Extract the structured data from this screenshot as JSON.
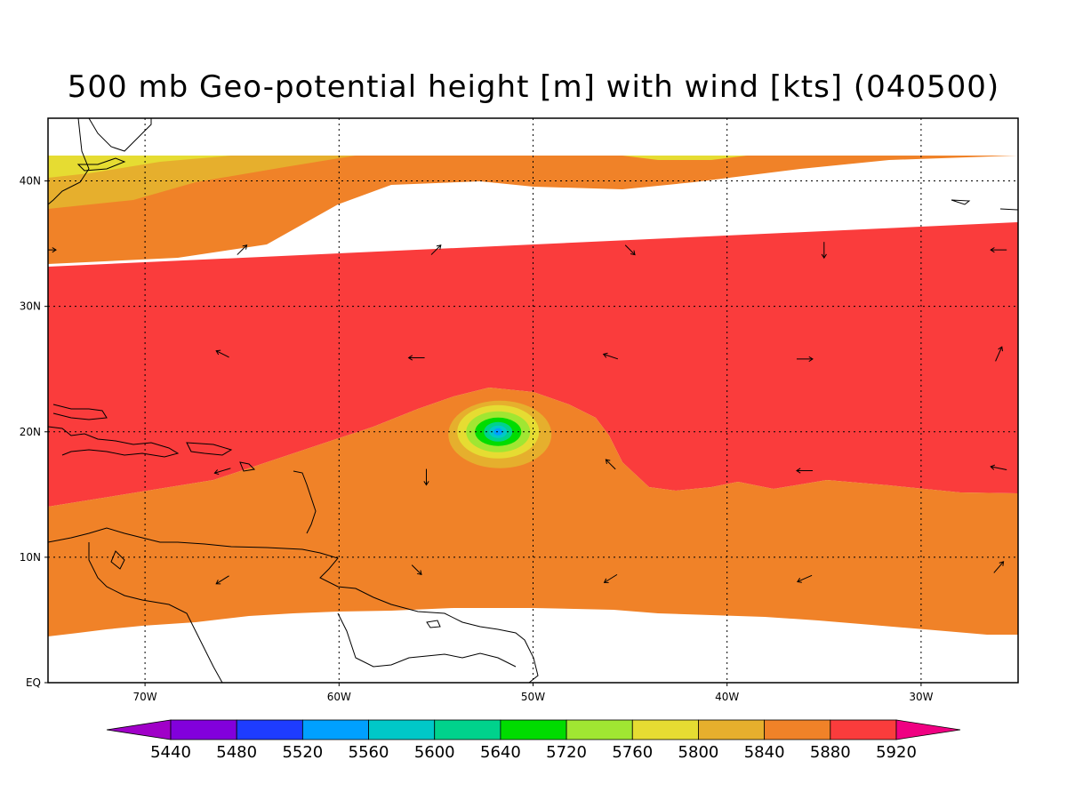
{
  "title": "500 mb Geo-potential height [m] with wind [kts] (040500)",
  "map": {
    "lon_range": [
      -75,
      -25
    ],
    "lat_range": [
      0,
      45
    ],
    "data_lat_top": 42,
    "lat_ticks": [
      {
        "lat": 40,
        "label": "40N"
      },
      {
        "lat": 30,
        "label": "30N"
      },
      {
        "lat": 20,
        "label": "20N"
      },
      {
        "lat": 10,
        "label": "10N"
      },
      {
        "lat": 0,
        "label": "EQ"
      }
    ],
    "lon_ticks": [
      {
        "lon": -70,
        "label": "70W"
      },
      {
        "lon": -60,
        "label": "60W"
      },
      {
        "lon": -50,
        "label": "50W"
      },
      {
        "lon": -40,
        "label": "40W"
      },
      {
        "lon": -30,
        "label": "30W"
      }
    ],
    "grid": true,
    "vortex_center": {
      "lon": -51.8,
      "lat": 20.0
    }
  },
  "colorbar": {
    "levels": [
      "5440",
      "5480",
      "5520",
      "5560",
      "5600",
      "5640",
      "5720",
      "5760",
      "5800",
      "5840",
      "5880",
      "5920"
    ],
    "colors": [
      "#a000c8",
      "#8200dc",
      "#1e3cff",
      "#00a0ff",
      "#00c8c8",
      "#00d28c",
      "#00dc00",
      "#a0e632",
      "#e6dc32",
      "#e6af2d",
      "#f08228",
      "#fa3c3c",
      "#f00082"
    ]
  },
  "wind_vectors_note_colors": {
    "arrow": "#000000"
  },
  "wind_vectors": [
    {
      "lon": -75,
      "lat": 34.5,
      "u": 1,
      "v": 0
    },
    {
      "lon": -65,
      "lat": 34.5,
      "u": 0.6,
      "v": 0.6
    },
    {
      "lon": -55,
      "lat": 34.5,
      "u": 0.6,
      "v": 0.6
    },
    {
      "lon": -45,
      "lat": 34.5,
      "u": 0.6,
      "v": -0.6
    },
    {
      "lon": -35,
      "lat": 34.5,
      "u": 0,
      "v": -1
    },
    {
      "lon": -26,
      "lat": 34.5,
      "u": -1,
      "v": 0
    },
    {
      "lon": -66,
      "lat": 26.2,
      "u": -0.8,
      "v": 0.4
    },
    {
      "lon": -56,
      "lat": 25.9,
      "u": -1,
      "v": 0
    },
    {
      "lon": -46,
      "lat": 26.0,
      "u": -0.9,
      "v": 0.3
    },
    {
      "lon": -36,
      "lat": 25.8,
      "u": 1,
      "v": 0
    },
    {
      "lon": -26,
      "lat": 26.2,
      "u": 0.4,
      "v": 0.9
    },
    {
      "lon": -66,
      "lat": 16.9,
      "u": -1,
      "v": -0.3
    },
    {
      "lon": -55.5,
      "lat": 16.4,
      "u": 0,
      "v": -1
    },
    {
      "lon": -46,
      "lat": 17.4,
      "u": -0.6,
      "v": 0.6
    },
    {
      "lon": -36,
      "lat": 16.9,
      "u": -1,
      "v": 0
    },
    {
      "lon": -26,
      "lat": 17.1,
      "u": -1,
      "v": 0.2
    },
    {
      "lon": -66,
      "lat": 8.2,
      "u": -0.8,
      "v": -0.5
    },
    {
      "lon": -56,
      "lat": 9.0,
      "u": 0.6,
      "v": -0.6
    },
    {
      "lon": -46,
      "lat": 8.3,
      "u": -0.8,
      "v": -0.5
    },
    {
      "lon": -36,
      "lat": 8.3,
      "u": -0.9,
      "v": -0.4
    },
    {
      "lon": -26,
      "lat": 9.2,
      "u": 0.6,
      "v": 0.7
    }
  ]
}
